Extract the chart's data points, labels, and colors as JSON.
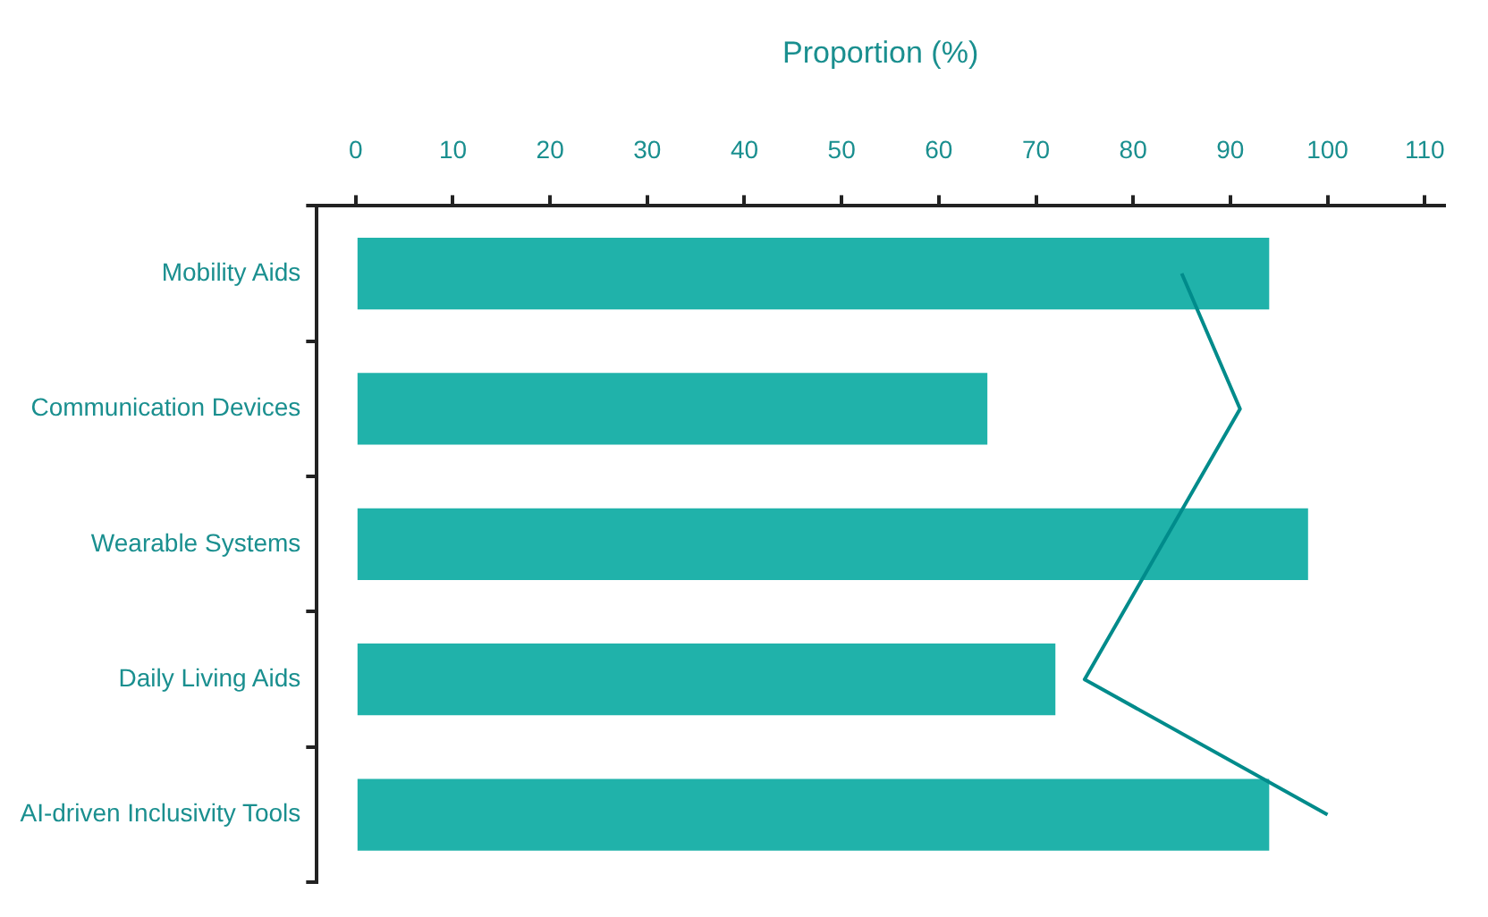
{
  "chart_data": {
    "type": "bar",
    "orientation": "horizontal",
    "xlabel": "Proportion (%)",
    "categories": [
      "Mobility Aids",
      "Communication Devices",
      "Wearable Systems",
      "Daily Living Aids",
      "AI-driven Inclusivity Tools"
    ],
    "series": [
      {
        "color": "#20b2aa",
        "values": [
          94,
          65,
          98,
          72,
          94
        ]
      },
      {
        "type": "line",
        "color": "#008b8b",
        "values": [
          85,
          91,
          83,
          75,
          100
        ]
      }
    ],
    "xlim": [
      -4,
      112
    ],
    "xticks": [
      0,
      10,
      20,
      30,
      40,
      50,
      60,
      70,
      80,
      90,
      100,
      110
    ],
    "grid": false,
    "legend": false,
    "marker": "none",
    "line_style": "solid"
  }
}
